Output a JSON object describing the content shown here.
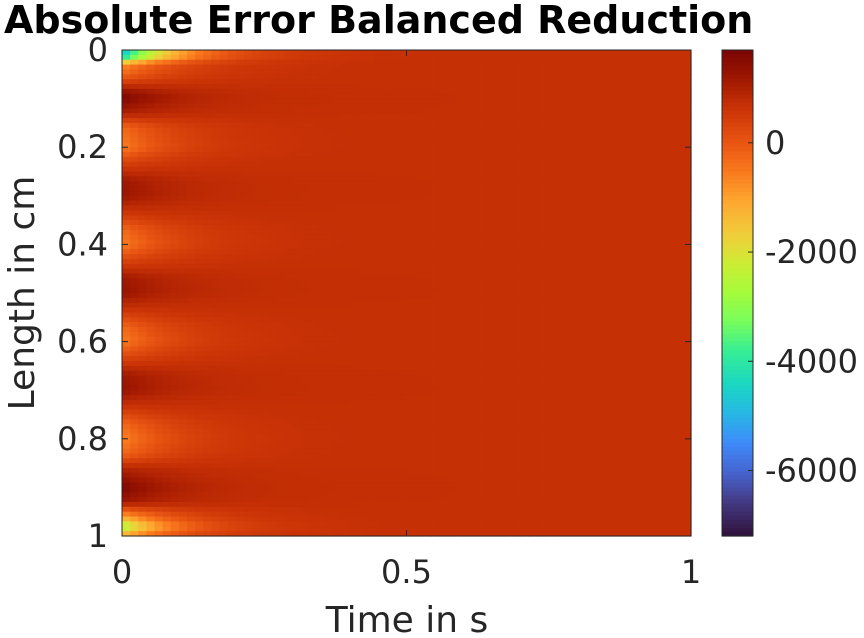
{
  "chart_data": {
    "type": "heatmap",
    "title": "Absolute Error Balanced Reduction",
    "xlabel": "Time in s",
    "ylabel": "Length in cm",
    "xlim": [
      0,
      1
    ],
    "ylim": [
      0,
      1
    ],
    "y_reversed": true,
    "xticks": [
      0,
      0.5,
      1
    ],
    "xtick_labels": [
      "0",
      "0.5",
      "1"
    ],
    "yticks": [
      0,
      0.2,
      0.4,
      0.6,
      0.8,
      1
    ],
    "ytick_labels": [
      "0",
      "0.2",
      "0.4",
      "0.6",
      "0.8",
      "1"
    ],
    "colormap": "turbo",
    "clim": [
      -7200,
      1700
    ],
    "colorbar_ticks": [
      0,
      -2000,
      -4000,
      -6000
    ],
    "colorbar_tick_labels": [
      "0",
      "-2000",
      "-4000",
      "-6000"
    ],
    "steady_state_value": 700,
    "initial_profile": {
      "y": [
        0,
        0.01,
        0.02,
        0.03,
        0.05,
        0.09,
        0.1,
        0.13,
        0.16,
        0.2,
        0.23,
        0.27,
        0.3,
        0.34,
        0.37,
        0.4,
        0.43,
        0.47,
        0.5,
        0.54,
        0.57,
        0.6,
        0.63,
        0.67,
        0.7,
        0.74,
        0.77,
        0.8,
        0.83,
        0.86,
        0.9,
        0.93,
        0.95,
        0.97,
        0.98,
        1.0
      ],
      "value": [
        -4200,
        -5500,
        -3000,
        -800,
        -300,
        1500,
        1650,
        1000,
        -300,
        -600,
        300,
        1200,
        1250,
        500,
        -300,
        -600,
        200,
        1200,
        1300,
        500,
        -300,
        -600,
        200,
        1200,
        1300,
        500,
        -300,
        -700,
        -300,
        900,
        1650,
        1200,
        -300,
        -1800,
        -3000,
        -1000
      ]
    },
    "decay_time_constant": 0.09
  }
}
